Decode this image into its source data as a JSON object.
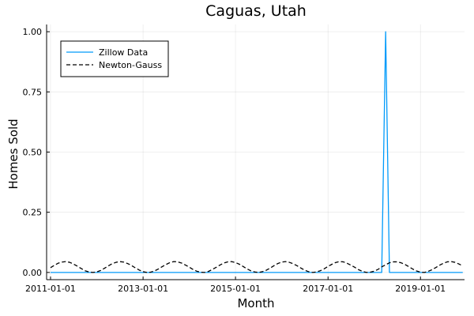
{
  "chart_data": {
    "type": "line",
    "title": "Caguas, Utah",
    "xlabel": "Month",
    "ylabel": "Homes Sold",
    "x_range": [
      "2010-12-01",
      "2019-12-15"
    ],
    "ylim": [
      -0.03,
      1.03
    ],
    "x_ticks": [
      "2011-01-01",
      "2013-01-01",
      "2015-01-01",
      "2017-01-01",
      "2019-01-01"
    ],
    "y_ticks": [
      0.0,
      0.25,
      0.5,
      0.75,
      1.0
    ],
    "y_tick_labels": [
      "0.00",
      "0.25",
      "0.50",
      "0.75",
      "1.00"
    ],
    "grid": true,
    "legend_position": "top-left",
    "series": [
      {
        "name": "Zillow Data",
        "color": "#009AFA",
        "style": "solid",
        "points": [
          [
            "2011-01-01",
            0
          ],
          [
            "2018-03-01",
            0
          ],
          [
            "2018-04-01",
            1
          ],
          [
            "2018-05-01",
            0
          ],
          [
            "2019-12-01",
            0
          ]
        ]
      },
      {
        "name": "Newton-Gauss",
        "color": "#000000",
        "style": "dashed",
        "points": [
          [
            "2011-01-01",
            0.02
          ],
          [
            "2011-02-01",
            0.03
          ],
          [
            "2011-03-01",
            0.038
          ],
          [
            "2011-04-01",
            0.043
          ],
          [
            "2011-05-01",
            0.045
          ],
          [
            "2011-06-01",
            0.042
          ],
          [
            "2011-07-01",
            0.035
          ],
          [
            "2011-08-01",
            0.026
          ],
          [
            "2011-09-01",
            0.016
          ],
          [
            "2011-10-01",
            0.007
          ],
          [
            "2011-11-01",
            0.002
          ],
          [
            "2011-12-01",
            0.0
          ],
          [
            "2012-01-01",
            0.002
          ],
          [
            "2012-02-01",
            0.008
          ],
          [
            "2012-03-01",
            0.017
          ],
          [
            "2012-04-01",
            0.027
          ],
          [
            "2012-05-01",
            0.036
          ],
          [
            "2012-06-01",
            0.042
          ],
          [
            "2012-07-01",
            0.045
          ],
          [
            "2012-08-01",
            0.043
          ],
          [
            "2012-09-01",
            0.037
          ],
          [
            "2012-10-01",
            0.029
          ],
          [
            "2012-11-01",
            0.019
          ],
          [
            "2012-12-01",
            0.01
          ],
          [
            "2013-01-01",
            0.003
          ],
          [
            "2013-02-01",
            0.0
          ],
          [
            "2013-03-01",
            0.001
          ],
          [
            "2013-04-01",
            0.006
          ],
          [
            "2013-05-01",
            0.014
          ],
          [
            "2013-06-01",
            0.024
          ],
          [
            "2013-07-01",
            0.033
          ],
          [
            "2013-08-01",
            0.041
          ],
          [
            "2013-09-01",
            0.045
          ],
          [
            "2013-10-01",
            0.044
          ],
          [
            "2013-11-01",
            0.039
          ],
          [
            "2013-12-01",
            0.031
          ],
          [
            "2014-01-01",
            0.022
          ],
          [
            "2014-02-01",
            0.012
          ],
          [
            "2014-03-01",
            0.005
          ],
          [
            "2014-04-01",
            0.001
          ],
          [
            "2014-05-01",
            0.0
          ],
          [
            "2014-06-01",
            0.004
          ],
          [
            "2014-07-01",
            0.012
          ],
          [
            "2014-08-01",
            0.021
          ],
          [
            "2014-09-01",
            0.031
          ],
          [
            "2014-10-01",
            0.039
          ],
          [
            "2014-11-01",
            0.044
          ],
          [
            "2014-12-01",
            0.045
          ],
          [
            "2015-01-01",
            0.041
          ],
          [
            "2015-02-01",
            0.034
          ],
          [
            "2015-03-01",
            0.025
          ],
          [
            "2015-04-01",
            0.015
          ],
          [
            "2015-05-01",
            0.007
          ],
          [
            "2015-06-01",
            0.002
          ],
          [
            "2015-07-01",
            0.0
          ],
          [
            "2015-08-01",
            0.003
          ],
          [
            "2015-09-01",
            0.009
          ],
          [
            "2015-10-01",
            0.018
          ],
          [
            "2015-11-01",
            0.028
          ],
          [
            "2015-12-01",
            0.037
          ],
          [
            "2016-01-01",
            0.043
          ],
          [
            "2016-02-01",
            0.045
          ],
          [
            "2016-03-01",
            0.042
          ],
          [
            "2016-04-01",
            0.036
          ],
          [
            "2016-05-01",
            0.028
          ],
          [
            "2016-06-01",
            0.018
          ],
          [
            "2016-07-01",
            0.009
          ],
          [
            "2016-08-01",
            0.003
          ],
          [
            "2016-09-01",
            0.0
          ],
          [
            "2016-10-01",
            0.002
          ],
          [
            "2016-11-01",
            0.007
          ],
          [
            "2016-12-01",
            0.015
          ],
          [
            "2017-01-01",
            0.025
          ],
          [
            "2017-02-01",
            0.034
          ],
          [
            "2017-03-01",
            0.041
          ],
          [
            "2017-04-01",
            0.045
          ],
          [
            "2017-05-01",
            0.044
          ],
          [
            "2017-06-01",
            0.038
          ],
          [
            "2017-07-01",
            0.03
          ],
          [
            "2017-08-01",
            0.021
          ],
          [
            "2017-09-01",
            0.011
          ],
          [
            "2017-10-01",
            0.004
          ],
          [
            "2017-11-01",
            0.0
          ],
          [
            "2017-12-01",
            0.001
          ],
          [
            "2018-01-01",
            0.005
          ],
          [
            "2018-02-01",
            0.013
          ],
          [
            "2018-03-01",
            0.023
          ],
          [
            "2018-04-01",
            0.032
          ],
          [
            "2018-05-01",
            0.04
          ],
          [
            "2018-06-01",
            0.044
          ],
          [
            "2018-07-01",
            0.044
          ],
          [
            "2018-08-01",
            0.04
          ],
          [
            "2018-09-01",
            0.033
          ],
          [
            "2018-10-01",
            0.024
          ],
          [
            "2018-11-01",
            0.014
          ],
          [
            "2018-12-01",
            0.006
          ],
          [
            "2019-01-01",
            0.001
          ],
          [
            "2019-02-01",
            0.0
          ],
          [
            "2019-03-01",
            0.004
          ],
          [
            "2019-04-01",
            0.011
          ],
          [
            "2019-05-01",
            0.02
          ],
          [
            "2019-06-01",
            0.03
          ],
          [
            "2019-07-01",
            0.038
          ],
          [
            "2019-08-01",
            0.044
          ],
          [
            "2019-09-01",
            0.045
          ],
          [
            "2019-10-01",
            0.042
          ],
          [
            "2019-11-01",
            0.035
          ],
          [
            "2019-12-01",
            0.027
          ]
        ]
      }
    ]
  }
}
